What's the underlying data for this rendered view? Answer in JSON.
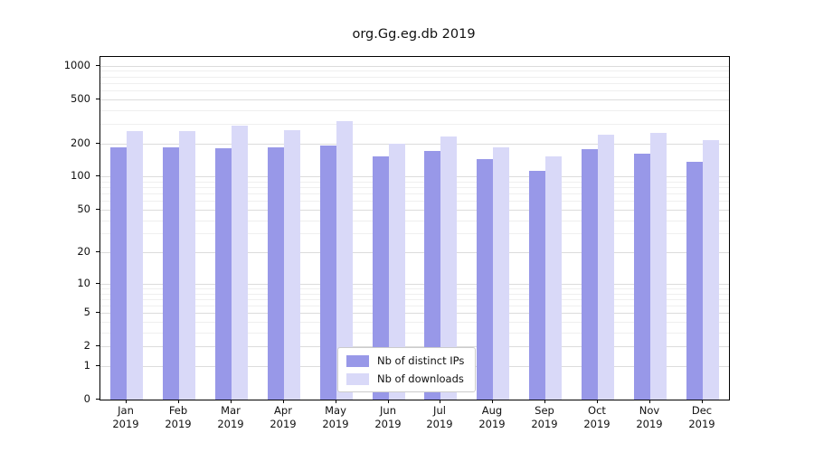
{
  "title": "org.Gg.eg.db 2019",
  "colors": {
    "distinct_ips": "#9898e8",
    "downloads": "#d9d9f8",
    "grid_major": "#dcdcdc",
    "grid_minor": "#efefef",
    "axis": "#000000"
  },
  "legend": {
    "items": [
      {
        "label": "Nb of distinct IPs",
        "color": "#9898e8"
      },
      {
        "label": "Nb of downloads",
        "color": "#d9d9f8"
      }
    ]
  },
  "chart_data": {
    "type": "bar",
    "title": "org.Gg.eg.db 2019",
    "xlabel": "",
    "ylabel": "",
    "year_label": "2019",
    "categories": [
      "Jan",
      "Feb",
      "Mar",
      "Apr",
      "May",
      "Jun",
      "Jul",
      "Aug",
      "Sep",
      "Oct",
      "Nov",
      "Dec"
    ],
    "series": [
      {
        "name": "Nb of distinct IPs",
        "values": [
          185,
          183,
          180,
          184,
          192,
          152,
          170,
          143,
          112,
          178,
          162,
          137
        ]
      },
      {
        "name": "Nb of downloads",
        "values": [
          258,
          258,
          287,
          262,
          320,
          198,
          230,
          183,
          152,
          238,
          248,
          215
        ]
      }
    ],
    "y_ticks": [
      0,
      1,
      2,
      5,
      10,
      20,
      50,
      100,
      200,
      500,
      1000
    ],
    "y_minor_ticks": [
      3,
      4,
      6,
      7,
      8,
      9,
      30,
      40,
      60,
      70,
      80,
      90,
      300,
      400,
      600,
      700,
      800,
      900
    ],
    "scale": "log1p",
    "ylim": [
      0,
      1200
    ],
    "grid": true,
    "legend_position": "bottom-center-inside"
  }
}
